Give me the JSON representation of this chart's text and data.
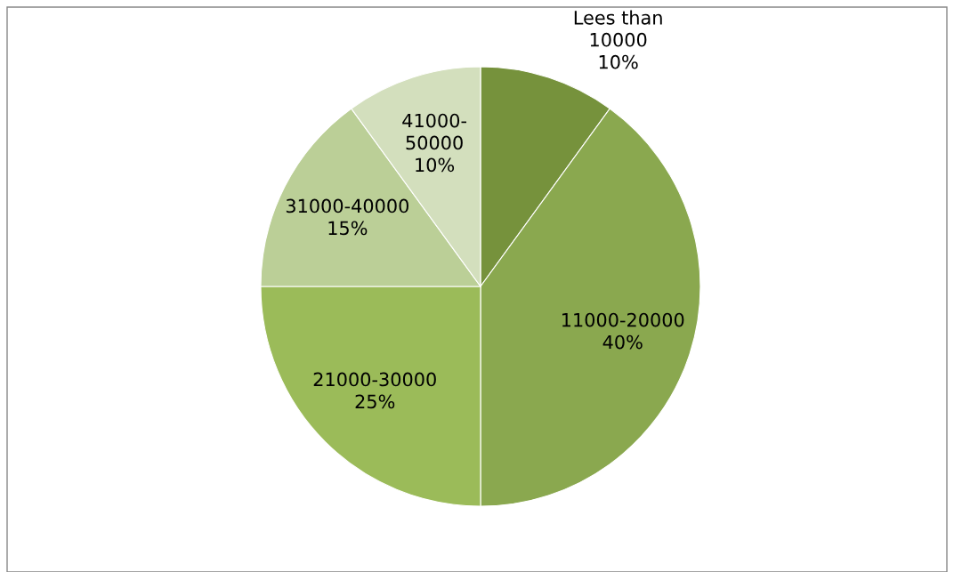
{
  "chart_data": {
    "type": "pie",
    "categories": [
      "Lees than 10000",
      "11000-20000",
      "21000-30000",
      "31000-40000",
      "41000-50000"
    ],
    "values": [
      10,
      40,
      25,
      15,
      10
    ],
    "colors": [
      "#76923c",
      "#8aa84f",
      "#9bbb59",
      "#bbcf97",
      "#d3dfbd"
    ],
    "value_labels": [
      "10%",
      "40%",
      "25%",
      "15%",
      "10%"
    ],
    "legend": false
  }
}
